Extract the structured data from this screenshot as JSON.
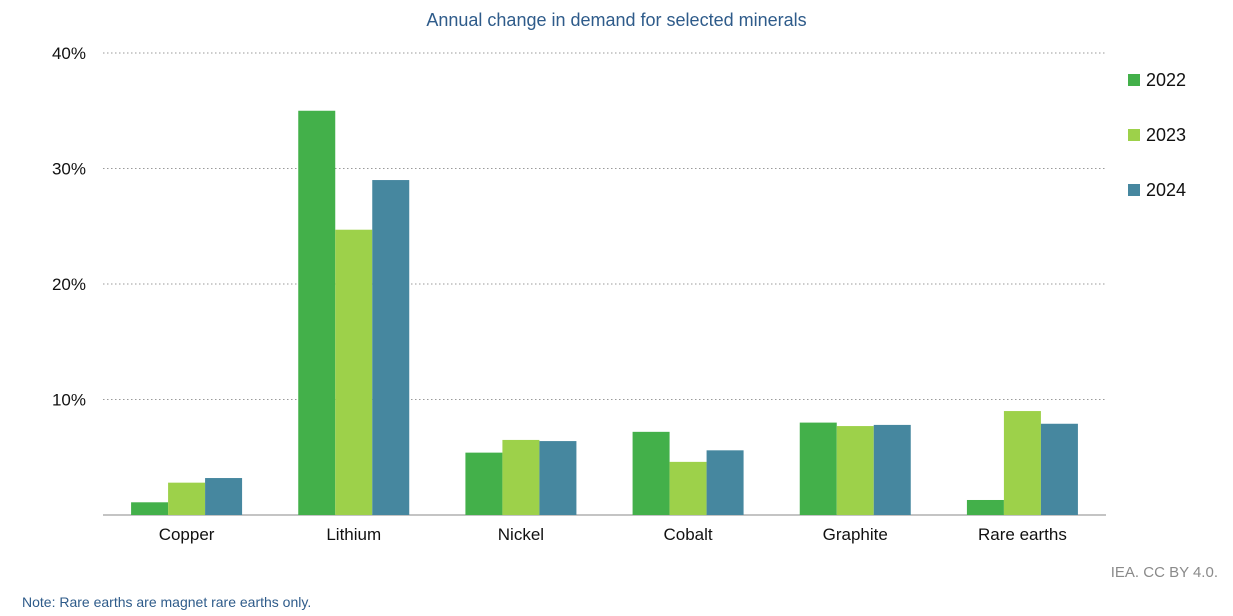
{
  "chart_data": {
    "type": "bar",
    "title": "Annual change in demand for selected minerals",
    "categories": [
      "Copper",
      "Lithium",
      "Nickel",
      "Cobalt",
      "Graphite",
      "Rare earths"
    ],
    "series": [
      {
        "name": "2022",
        "color": "#43b04a",
        "values": [
          1.1,
          35.0,
          5.4,
          7.2,
          8.0,
          1.3
        ]
      },
      {
        "name": "2023",
        "color": "#9dd14a",
        "values": [
          2.8,
          24.7,
          6.5,
          4.6,
          7.7,
          9.0
        ]
      },
      {
        "name": "2024",
        "color": "#46879f",
        "values": [
          3.2,
          29.0,
          6.4,
          5.6,
          7.8,
          7.9
        ]
      }
    ],
    "yticks": [
      "10%",
      "20%",
      "30%",
      "40%"
    ],
    "ylim": [
      0,
      40
    ],
    "grid": true,
    "legend_position": "right"
  },
  "credit": "IEA. CC BY 4.0.",
  "note": "Note: Rare earths are magnet rare earths only."
}
